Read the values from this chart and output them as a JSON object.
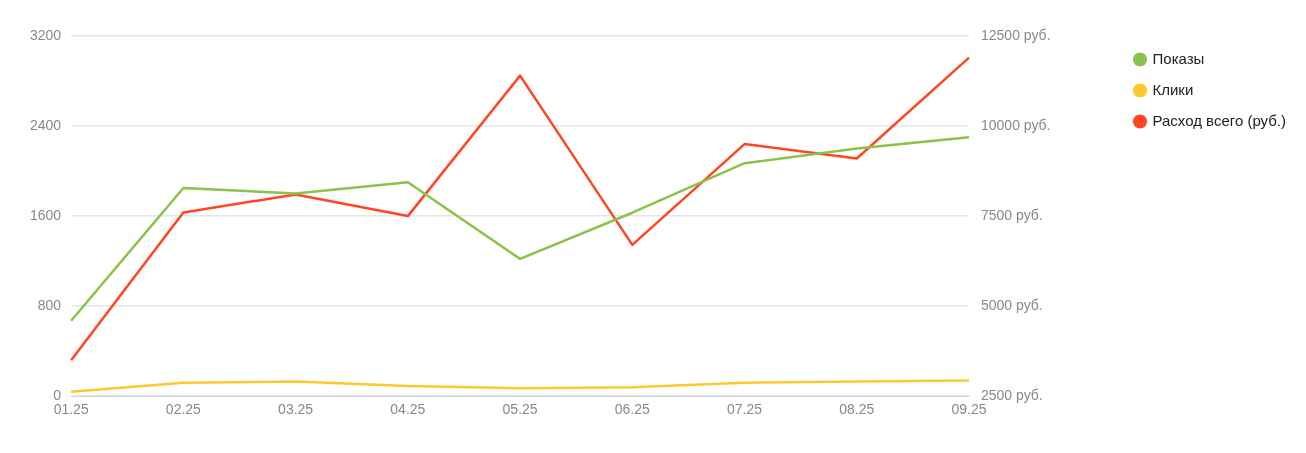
{
  "chart_data": {
    "type": "line",
    "categories": [
      "01.25",
      "02.25",
      "03.25",
      "04.25",
      "05.25",
      "06.25",
      "07.25",
      "08.25",
      "09.25"
    ],
    "series": [
      {
        "name": "Показы",
        "color": "#8bc34a",
        "values": [
          670,
          1850,
          1800,
          1900,
          1220,
          1630,
          2070,
          2200,
          2300
        ]
      },
      {
        "name": "Клики",
        "color": "#fdc82c",
        "values": [
          40,
          120,
          130,
          90,
          70,
          80,
          120,
          130,
          140
        ]
      },
      {
        "name": "Расход всего (руб.)",
        "color": "#ff4522",
        "axis": "y2",
        "values": [
          3500,
          7600,
          8100,
          7500,
          11400,
          6700,
          9500,
          9100,
          11900
        ]
      }
    ],
    "ylim": [
      0,
      3200
    ],
    "yticks": [
      0,
      800,
      1600,
      2400,
      3200
    ],
    "y2lim": [
      2500,
      12500
    ],
    "y2ticks": [
      {
        "value": 2500,
        "label": "2500 руб."
      },
      {
        "value": 5000,
        "label": "5000 руб."
      },
      {
        "value": 7500,
        "label": "7500 руб."
      },
      {
        "value": 10000,
        "label": "10000 руб."
      },
      {
        "value": 12500,
        "label": "12500 руб."
      }
    ],
    "grid": "y",
    "legend": "top right"
  }
}
